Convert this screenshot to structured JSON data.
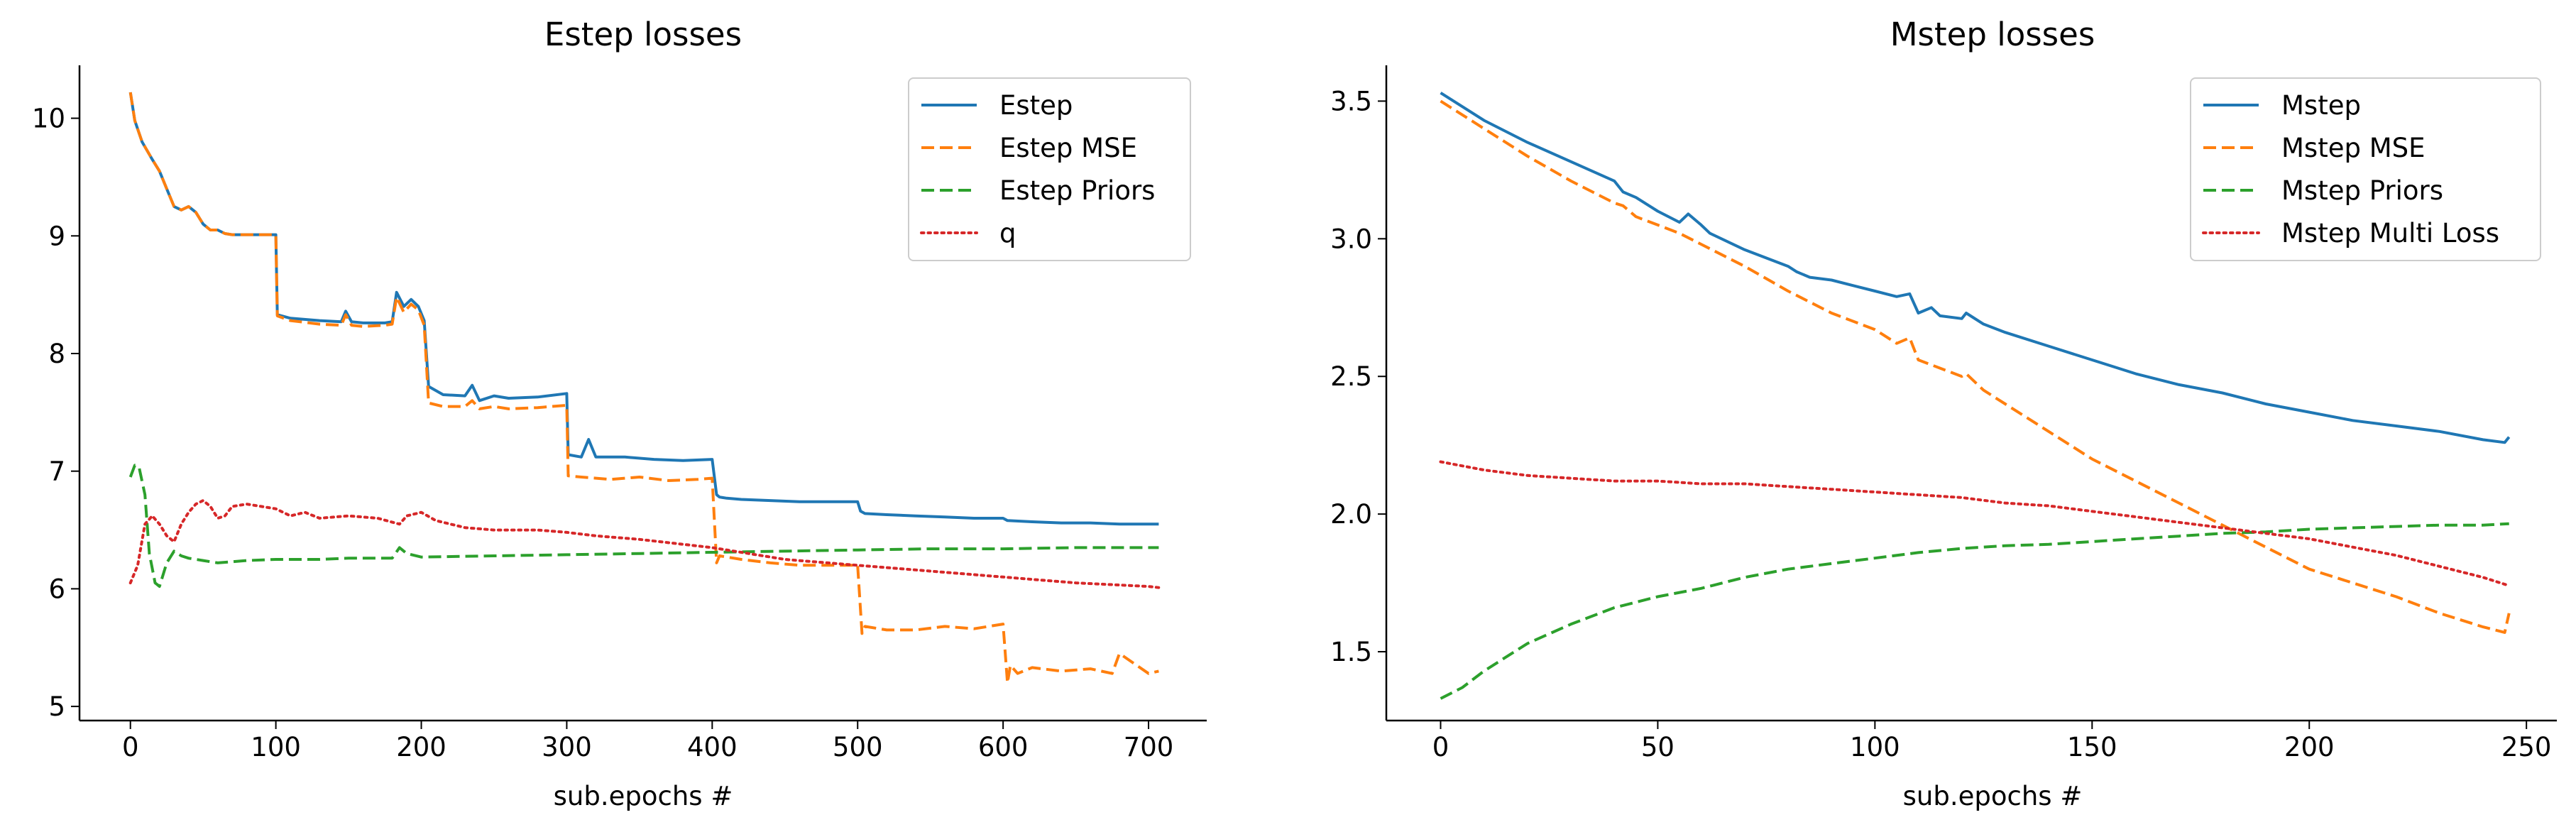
{
  "colors": {
    "blue": "#1f77b4",
    "orange": "#ff7f0e",
    "green": "#2ca02c",
    "red": "#d62728"
  },
  "chart_data": [
    {
      "type": "line",
      "title": "Estep losses",
      "xlabel": "sub.epochs #",
      "ylabel": "",
      "xlim": [
        -35,
        740
      ],
      "ylim": [
        4.88,
        10.45
      ],
      "xticks": [
        0,
        100,
        200,
        300,
        400,
        500,
        600,
        700
      ],
      "yticks": [
        5,
        6,
        7,
        8,
        9,
        10
      ],
      "legend_position": "top-right",
      "grid": false,
      "series": [
        {
          "name": "Estep",
          "color": "#1f77b4",
          "dash": "solid",
          "x": [
            0,
            3,
            8,
            15,
            20,
            25,
            30,
            35,
            40,
            45,
            50,
            55,
            60,
            65,
            70,
            80,
            90,
            100,
            101,
            110,
            130,
            145,
            148,
            152,
            160,
            175,
            180,
            183,
            188,
            193,
            198,
            202,
            205,
            215,
            230,
            235,
            240,
            250,
            260,
            280,
            300,
            301,
            310,
            315,
            320,
            340,
            360,
            380,
            400,
            403,
            405,
            410,
            420,
            440,
            460,
            480,
            500,
            502,
            505,
            520,
            540,
            560,
            580,
            600,
            603,
            620,
            640,
            660,
            680,
            700,
            707
          ],
          "y": [
            10.22,
            9.98,
            9.8,
            9.65,
            9.55,
            9.4,
            9.25,
            9.22,
            9.25,
            9.2,
            9.1,
            9.05,
            9.05,
            9.02,
            9.01,
            9.01,
            9.01,
            9.01,
            8.33,
            8.3,
            8.28,
            8.27,
            8.36,
            8.27,
            8.26,
            8.26,
            8.27,
            8.52,
            8.4,
            8.46,
            8.4,
            8.28,
            7.72,
            7.65,
            7.64,
            7.73,
            7.6,
            7.64,
            7.62,
            7.63,
            7.66,
            7.14,
            7.12,
            7.27,
            7.12,
            7.12,
            7.1,
            7.09,
            7.1,
            6.8,
            6.78,
            6.77,
            6.76,
            6.75,
            6.74,
            6.74,
            6.74,
            6.66,
            6.64,
            6.63,
            6.62,
            6.61,
            6.6,
            6.6,
            6.58,
            6.57,
            6.56,
            6.56,
            6.55,
            6.55,
            6.55
          ]
        },
        {
          "name": "Estep MSE",
          "color": "#ff7f0e",
          "dash": "dashed",
          "x": [
            0,
            3,
            8,
            15,
            20,
            25,
            30,
            35,
            40,
            45,
            50,
            55,
            60,
            65,
            70,
            80,
            90,
            100,
            101,
            110,
            130,
            145,
            148,
            152,
            160,
            175,
            180,
            183,
            188,
            193,
            198,
            202,
            205,
            215,
            230,
            235,
            240,
            250,
            260,
            280,
            300,
            301,
            310,
            330,
            350,
            370,
            390,
            400,
            403,
            405,
            420,
            440,
            460,
            480,
            500,
            503,
            505,
            520,
            540,
            560,
            580,
            600,
            603,
            605,
            610,
            620,
            640,
            660,
            675,
            680,
            700,
            707
          ],
          "y": [
            10.22,
            9.98,
            9.8,
            9.65,
            9.55,
            9.4,
            9.25,
            9.22,
            9.25,
            9.2,
            9.1,
            9.05,
            9.05,
            9.02,
            9.01,
            9.01,
            9.01,
            9.01,
            8.32,
            8.28,
            8.25,
            8.24,
            8.33,
            8.24,
            8.23,
            8.24,
            8.25,
            8.48,
            8.35,
            8.42,
            8.37,
            8.24,
            7.58,
            7.55,
            7.55,
            7.6,
            7.53,
            7.55,
            7.53,
            7.54,
            7.56,
            6.96,
            6.95,
            6.93,
            6.95,
            6.92,
            6.93,
            6.94,
            6.22,
            6.28,
            6.25,
            6.22,
            6.2,
            6.2,
            6.2,
            5.62,
            5.68,
            5.65,
            5.65,
            5.68,
            5.66,
            5.7,
            5.2,
            5.35,
            5.28,
            5.33,
            5.3,
            5.32,
            5.28,
            5.45,
            5.28,
            5.3
          ]
        },
        {
          "name": "Estep Priors",
          "color": "#2ca02c",
          "dash": "dashed",
          "x": [
            0,
            3,
            6,
            10,
            13,
            17,
            20,
            25,
            30,
            35,
            40,
            50,
            60,
            80,
            100,
            130,
            150,
            180,
            185,
            190,
            200,
            250,
            300,
            350,
            400,
            450,
            500,
            550,
            600,
            650,
            707
          ],
          "y": [
            6.95,
            7.05,
            7.03,
            6.8,
            6.3,
            6.05,
            6.02,
            6.22,
            6.32,
            6.28,
            6.26,
            6.24,
            6.22,
            6.24,
            6.25,
            6.25,
            6.26,
            6.26,
            6.35,
            6.3,
            6.27,
            6.28,
            6.29,
            6.3,
            6.31,
            6.32,
            6.33,
            6.34,
            6.34,
            6.35,
            6.35
          ]
        },
        {
          "name": "q",
          "color": "#d62728",
          "dash": "dotted",
          "x": [
            0,
            5,
            10,
            15,
            20,
            25,
            30,
            35,
            40,
            45,
            50,
            55,
            60,
            65,
            70,
            80,
            90,
            100,
            110,
            120,
            130,
            150,
            170,
            185,
            190,
            200,
            210,
            230,
            250,
            280,
            300,
            320,
            350,
            400,
            450,
            500,
            550,
            600,
            650,
            700,
            707
          ],
          "y": [
            6.05,
            6.2,
            6.55,
            6.62,
            6.55,
            6.45,
            6.4,
            6.55,
            6.65,
            6.72,
            6.75,
            6.7,
            6.6,
            6.62,
            6.7,
            6.72,
            6.7,
            6.68,
            6.62,
            6.65,
            6.6,
            6.62,
            6.6,
            6.55,
            6.62,
            6.65,
            6.58,
            6.52,
            6.5,
            6.5,
            6.48,
            6.45,
            6.42,
            6.35,
            6.25,
            6.2,
            6.15,
            6.1,
            6.05,
            6.02,
            6.01
          ]
        }
      ],
      "legend": [
        "Estep",
        "Estep MSE",
        "Estep Priors",
        "q"
      ]
    },
    {
      "type": "line",
      "title": "Mstep losses",
      "xlabel": "sub.epochs #",
      "ylabel": "",
      "xlim": [
        -12.5,
        257
      ],
      "ylim": [
        1.25,
        3.63
      ],
      "xticks": [
        0,
        50,
        100,
        150,
        200,
        250
      ],
      "yticks": [
        1.5,
        2.0,
        2.5,
        3.0,
        3.5
      ],
      "legend_position": "top-right",
      "grid": false,
      "series": [
        {
          "name": "Mstep",
          "color": "#1f77b4",
          "dash": "solid",
          "x": [
            0,
            10,
            20,
            30,
            40,
            42,
            45,
            48,
            50,
            55,
            57,
            60,
            62,
            70,
            80,
            82,
            85,
            90,
            95,
            100,
            105,
            108,
            110,
            113,
            115,
            120,
            121,
            125,
            130,
            140,
            150,
            160,
            170,
            180,
            190,
            200,
            210,
            220,
            230,
            240,
            245,
            246
          ],
          "y": [
            3.53,
            3.43,
            3.35,
            3.28,
            3.21,
            3.17,
            3.15,
            3.12,
            3.1,
            3.06,
            3.09,
            3.05,
            3.02,
            2.96,
            2.9,
            2.88,
            2.86,
            2.85,
            2.83,
            2.81,
            2.79,
            2.8,
            2.73,
            2.75,
            2.72,
            2.71,
            2.73,
            2.69,
            2.66,
            2.61,
            2.56,
            2.51,
            2.47,
            2.44,
            2.4,
            2.37,
            2.34,
            2.32,
            2.3,
            2.27,
            2.26,
            2.28
          ]
        },
        {
          "name": "Mstep MSE",
          "color": "#ff7f0e",
          "dash": "dashed",
          "x": [
            0,
            10,
            20,
            30,
            40,
            42,
            45,
            50,
            55,
            60,
            70,
            80,
            90,
            100,
            105,
            108,
            110,
            115,
            120,
            121,
            125,
            130,
            140,
            150,
            160,
            170,
            180,
            190,
            200,
            210,
            220,
            230,
            240,
            245,
            246
          ],
          "y": [
            3.5,
            3.4,
            3.3,
            3.21,
            3.13,
            3.12,
            3.08,
            3.05,
            3.02,
            2.98,
            2.9,
            2.81,
            2.73,
            2.67,
            2.62,
            2.64,
            2.56,
            2.53,
            2.5,
            2.51,
            2.45,
            2.4,
            2.3,
            2.2,
            2.12,
            2.04,
            1.96,
            1.88,
            1.8,
            1.75,
            1.7,
            1.64,
            1.59,
            1.57,
            1.64
          ]
        },
        {
          "name": "Mstep Priors",
          "color": "#2ca02c",
          "dash": "dashed",
          "x": [
            0,
            5,
            10,
            20,
            30,
            40,
            50,
            60,
            70,
            80,
            90,
            100,
            110,
            120,
            130,
            140,
            150,
            160,
            170,
            180,
            190,
            200,
            210,
            220,
            230,
            240,
            246
          ],
          "y": [
            1.33,
            1.37,
            1.43,
            1.53,
            1.6,
            1.66,
            1.7,
            1.73,
            1.77,
            1.8,
            1.82,
            1.84,
            1.86,
            1.875,
            1.885,
            1.89,
            1.9,
            1.91,
            1.92,
            1.93,
            1.935,
            1.945,
            1.95,
            1.955,
            1.96,
            1.96,
            1.965
          ]
        },
        {
          "name": "Mstep Multi Loss",
          "color": "#d62728",
          "dash": "dotted",
          "x": [
            0,
            10,
            20,
            30,
            40,
            50,
            60,
            70,
            80,
            90,
            100,
            110,
            120,
            130,
            140,
            150,
            160,
            170,
            180,
            190,
            200,
            210,
            220,
            230,
            240,
            246
          ],
          "y": [
            2.19,
            2.16,
            2.14,
            2.13,
            2.12,
            2.12,
            2.11,
            2.11,
            2.1,
            2.09,
            2.08,
            2.07,
            2.06,
            2.04,
            2.03,
            2.01,
            1.99,
            1.97,
            1.95,
            1.93,
            1.91,
            1.88,
            1.85,
            1.81,
            1.77,
            1.74
          ]
        }
      ],
      "legend": [
        "Mstep",
        "Mstep MSE",
        "Mstep Priors",
        "Mstep Multi Loss"
      ]
    }
  ]
}
